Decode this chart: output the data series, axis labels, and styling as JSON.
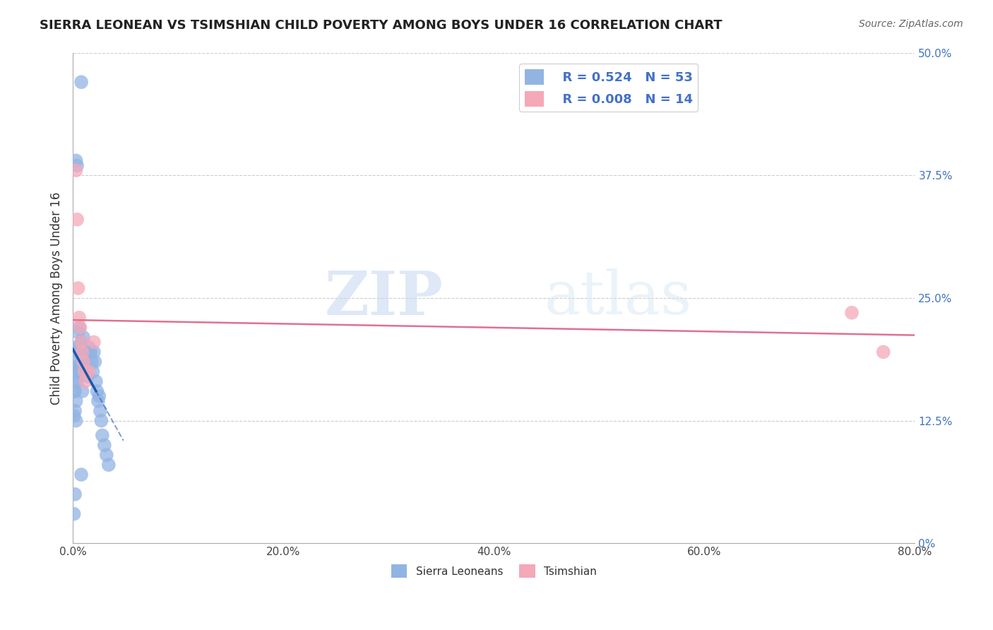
{
  "title": "SIERRA LEONEAN VS TSIMSHIAN CHILD POVERTY AMONG BOYS UNDER 16 CORRELATION CHART",
  "source": "Source: ZipAtlas.com",
  "ylabel": "Child Poverty Among Boys Under 16",
  "xlim": [
    0,
    0.8
  ],
  "ylim": [
    0,
    0.5
  ],
  "yticks": [
    0.0,
    0.125,
    0.25,
    0.375,
    0.5
  ],
  "ytick_labels": [
    "0%",
    "12.5%",
    "25.0%",
    "37.5%",
    "50.0%"
  ],
  "xticks": [
    0.0,
    0.2,
    0.4,
    0.6,
    0.8
  ],
  "xtick_labels": [
    "0.0%",
    "20.0%",
    "40.0%",
    "60.0%",
    "80.0%"
  ],
  "legend_r_blue": "R = 0.524",
  "legend_n_blue": "N = 53",
  "legend_r_pink": "R = 0.008",
  "legend_n_pink": "N = 14",
  "blue_color": "#92b4e3",
  "pink_color": "#f4a8b8",
  "blue_line_color": "#1a56b0",
  "pink_line_color": "#e07090",
  "watermark_zip": "ZIP",
  "watermark_atlas": "atlas",
  "blue_x": [
    0.001,
    0.001,
    0.002,
    0.002,
    0.002,
    0.003,
    0.003,
    0.003,
    0.003,
    0.004,
    0.004,
    0.004,
    0.005,
    0.005,
    0.005,
    0.006,
    0.006,
    0.006,
    0.007,
    0.007,
    0.008,
    0.008,
    0.009,
    0.009,
    0.01,
    0.01,
    0.011,
    0.012,
    0.013,
    0.014,
    0.015,
    0.016,
    0.017,
    0.018,
    0.019,
    0.02,
    0.021,
    0.022,
    0.023,
    0.024,
    0.025,
    0.026,
    0.027,
    0.028,
    0.03,
    0.032,
    0.034,
    0.003,
    0.004,
    0.002,
    0.001,
    0.008,
    0.008
  ],
  "blue_y": [
    0.155,
    0.13,
    0.175,
    0.155,
    0.135,
    0.18,
    0.165,
    0.145,
    0.125,
    0.2,
    0.185,
    0.165,
    0.215,
    0.195,
    0.175,
    0.22,
    0.2,
    0.18,
    0.195,
    0.175,
    0.205,
    0.185,
    0.175,
    0.155,
    0.21,
    0.19,
    0.19,
    0.195,
    0.185,
    0.17,
    0.2,
    0.195,
    0.195,
    0.185,
    0.175,
    0.195,
    0.185,
    0.165,
    0.155,
    0.145,
    0.15,
    0.135,
    0.125,
    0.11,
    0.1,
    0.09,
    0.08,
    0.39,
    0.385,
    0.05,
    0.03,
    0.07,
    0.47
  ],
  "pink_x": [
    0.003,
    0.004,
    0.005,
    0.006,
    0.007,
    0.008,
    0.009,
    0.01,
    0.011,
    0.012,
    0.015,
    0.02,
    0.74,
    0.77
  ],
  "pink_y": [
    0.38,
    0.33,
    0.26,
    0.23,
    0.22,
    0.205,
    0.195,
    0.185,
    0.175,
    0.165,
    0.175,
    0.205,
    0.235,
    0.195
  ]
}
